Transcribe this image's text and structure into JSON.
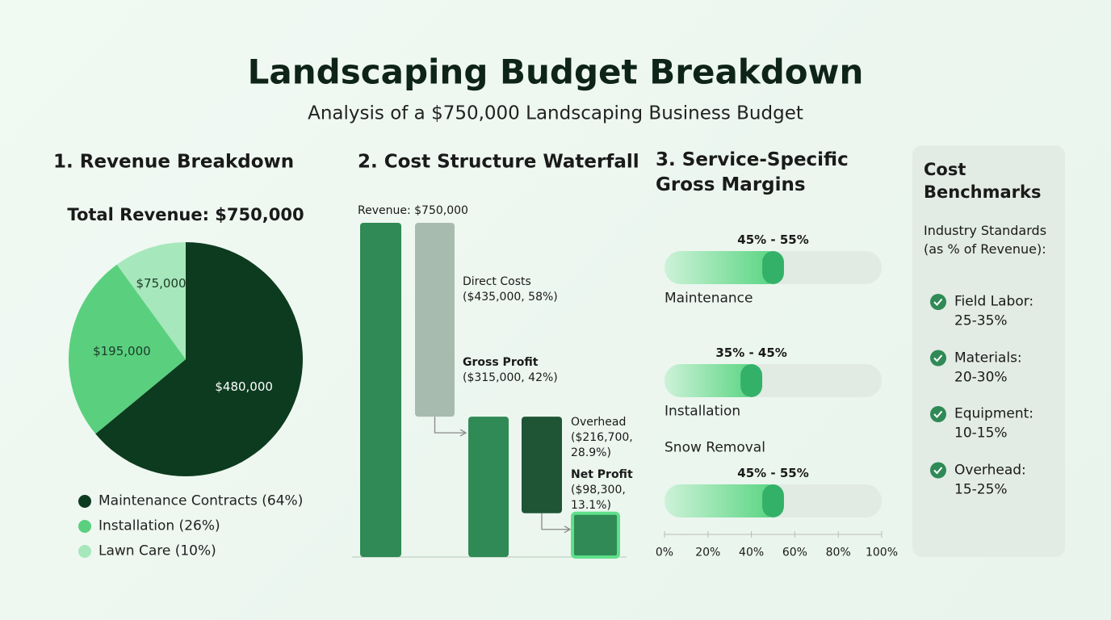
{
  "title": "Landscaping Budget Breakdown",
  "subtitle": "Analysis of a $750,000 Landscaping Business Budget",
  "chart_data": [
    {
      "type": "pie",
      "title": "1. Revenue Breakdown",
      "subtitle": "Total Revenue: $750,000",
      "categories": [
        "Maintenance Contracts (64%)",
        "Installation (26%)",
        "Lawn Care (10%)"
      ],
      "values": [
        480000,
        195000,
        75000
      ],
      "value_labels": [
        "$480,000",
        "$195,000",
        "$75,000"
      ],
      "colors": [
        "#0d3b1f",
        "#5ad07f",
        "#a6e8bb"
      ]
    },
    {
      "type": "waterfall",
      "title": "2. Cost Structure Waterfall",
      "categories": [
        "Revenue:",
        "Direct Costs",
        "Gross Profit",
        "Overhead",
        "Net Profit"
      ],
      "values": [
        750000,
        435000,
        315000,
        216700,
        98300
      ],
      "value_labels": [
        "$750,000",
        "($435,000, 58%)",
        "($315,000, 42%)",
        "($216,700, 28.9%)",
        "($98,300, 13.1%)"
      ],
      "kinds": [
        "total",
        "decrease",
        "total",
        "decrease",
        "total"
      ],
      "colors": [
        "#2f8a55",
        "#a7bcae",
        "#2f8a55",
        "#1f5535",
        "#2f8a55"
      ]
    },
    {
      "type": "range",
      "title": "3. Service-Specific Gross Margins",
      "categories": [
        "Maintenance",
        "Installation",
        "Snow Removal"
      ],
      "low": [
        45,
        35,
        45
      ],
      "high": [
        55,
        45,
        55
      ],
      "value_labels": [
        "45% - 55%",
        "35% - 45%",
        "45% - 55%"
      ],
      "color": "#33b168",
      "xlim": [
        0,
        100
      ],
      "xticks": [
        {
          "value": 0,
          "label": "0%"
        },
        {
          "value": 20,
          "label": "20%"
        },
        {
          "value": 40,
          "label": "40%"
        },
        {
          "value": 60,
          "label": "60%"
        },
        {
          "value": 80,
          "label": "80%"
        },
        {
          "value": 100,
          "label": "100%"
        }
      ]
    }
  ],
  "benchmarks": {
    "title": "Cost Benchmarks",
    "subtitle": "Industry Standards (as % of Revenue):",
    "items": [
      {
        "label": "Field Labor:",
        "value": "25-35%"
      },
      {
        "label": "Materials:",
        "value": "20-30%"
      },
      {
        "label": "Equipment:",
        "value": "10-15%"
      },
      {
        "label": "Overhead:",
        "value": "15-25%"
      }
    ]
  }
}
